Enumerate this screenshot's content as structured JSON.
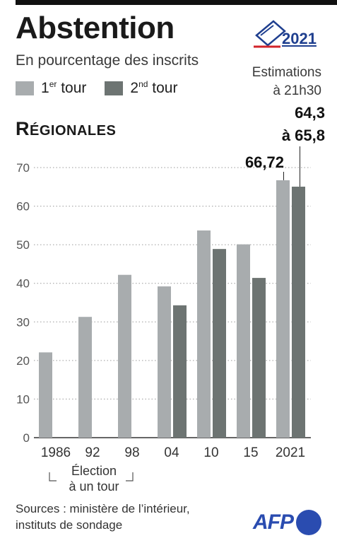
{
  "header": {
    "title": "Abstention",
    "subtitle": "En pourcentage des inscrits",
    "badge_year": "2021",
    "estimation_line1": "Estimations",
    "estimation_line2": "à 21h30",
    "legend_tour1": "1er tour",
    "legend_tour2": "2nd tour",
    "legend_tour1_main": "1",
    "legend_tour1_sup": "er",
    "legend_tour1_rest": " tour",
    "legend_tour2_main": "2",
    "legend_tour2_sup": "nd",
    "legend_tour2_rest": " tour",
    "section_first": "R",
    "section_rest": "ÉGIONALES"
  },
  "colors": {
    "tour1": "#a8acae",
    "tour2": "#6d7472",
    "grid": "#9a9a9a",
    "axis": "#333333"
  },
  "chart_data": {
    "type": "bar",
    "categories": [
      "1986",
      "92",
      "98",
      "04",
      "10",
      "15",
      "2021"
    ],
    "series": [
      {
        "name": "1er tour",
        "values": [
          22.1,
          31.3,
          42.2,
          39.2,
          53.7,
          50.1,
          66.72
        ]
      },
      {
        "name": "2nd tour",
        "values": [
          null,
          null,
          null,
          34.3,
          48.9,
          41.4,
          65.05
        ]
      }
    ],
    "ylim": [
      0,
      70
    ],
    "yticks": [
      0,
      10,
      20,
      30,
      40,
      50,
      60,
      70
    ],
    "grid": true,
    "annotations": [
      {
        "text": "66,72",
        "category": "2021",
        "series": "1er tour"
      },
      {
        "text_line1": "64,3",
        "text_line2": "à 65,8",
        "category": "2021",
        "series": "2nd tour"
      }
    ]
  },
  "note": {
    "line1": "Élection",
    "line2": "à un tour"
  },
  "footer": {
    "sources_line1": "Sources : ministère de l’intérieur,",
    "sources_line2": "instituts de sondage",
    "logo_text": "AFP"
  }
}
